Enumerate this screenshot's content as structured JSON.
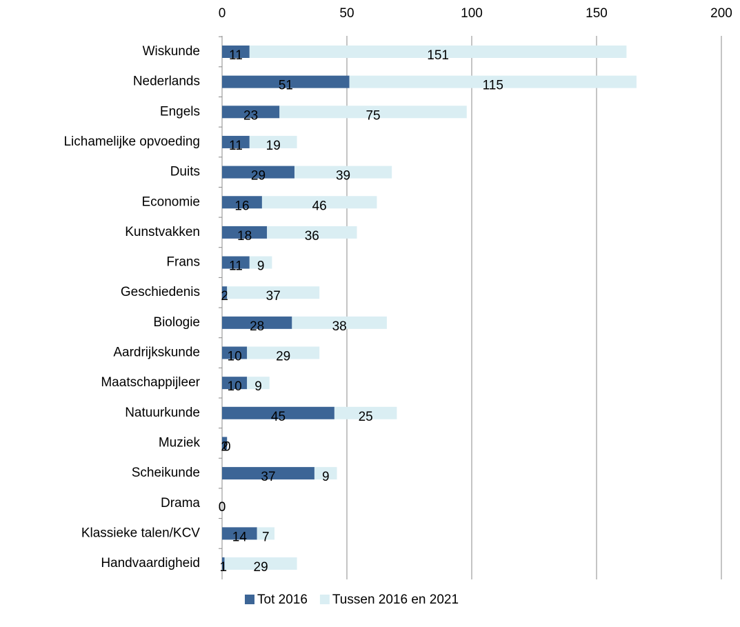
{
  "chart_data": {
    "type": "stacked-bar-horizontal",
    "categories": [
      "Wiskunde",
      "Nederlands",
      "Engels",
      "Lichamelijke opvoeding",
      "Duits",
      "Economie",
      "Kunstvakken",
      "Frans",
      "Geschiedenis",
      "Biologie",
      "Aardrijkskunde",
      "Maatschappijleer",
      "Natuurkunde",
      "Muziek",
      "Scheikunde",
      "Drama",
      "Klassieke talen/KCV",
      "Handvaardigheid"
    ],
    "series": [
      {
        "name": "Tot 2016",
        "color": "#3c6596",
        "values": [
          11,
          51,
          23,
          11,
          29,
          16,
          18,
          11,
          2,
          28,
          10,
          10,
          45,
          2,
          37,
          0,
          14,
          1
        ]
      },
      {
        "name": "Tussen 2016 en 2021",
        "color": "#daeef3",
        "values": [
          151,
          115,
          75,
          19,
          39,
          46,
          36,
          9,
          37,
          38,
          29,
          9,
          25,
          0,
          9,
          0,
          7,
          29
        ]
      }
    ],
    "xlim": [
      0,
      200
    ],
    "xticks": [
      0,
      50,
      100,
      150,
      200
    ],
    "grid": true,
    "legend": "bottom"
  }
}
